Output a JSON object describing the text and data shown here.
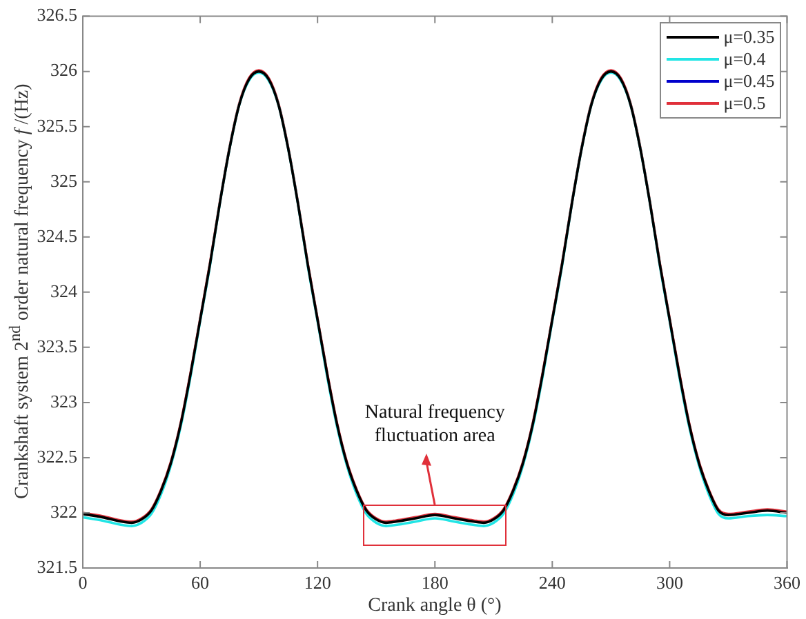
{
  "chart_data": {
    "type": "line",
    "xlabel": "Crank angle θ (°)",
    "ylabel": "Crankshaft system 2$^{nd}$ order natural frequency f /(Hz)",
    "x": [
      0,
      10,
      20,
      25,
      30,
      35,
      40,
      45,
      50,
      55,
      60,
      65,
      70,
      75,
      80,
      85,
      90,
      95,
      100,
      105,
      110,
      115,
      120,
      125,
      130,
      135,
      140,
      145,
      150,
      155,
      160,
      170,
      180,
      190,
      200,
      205,
      210,
      215,
      220,
      225,
      230,
      235,
      240,
      245,
      250,
      255,
      260,
      265,
      270,
      275,
      280,
      285,
      290,
      295,
      300,
      305,
      310,
      315,
      320,
      325,
      330,
      340,
      350,
      360
    ],
    "series": [
      {
        "name": "μ=0.35",
        "color": "#000000",
        "values": [
          321.99,
          321.96,
          321.92,
          321.91,
          321.94,
          322.02,
          322.2,
          322.45,
          322.8,
          323.25,
          323.75,
          324.25,
          324.8,
          325.3,
          325.7,
          325.93,
          326.0,
          325.93,
          325.7,
          325.3,
          324.8,
          324.25,
          323.75,
          323.25,
          322.8,
          322.45,
          322.2,
          322.02,
          321.94,
          321.91,
          321.92,
          321.95,
          321.98,
          321.95,
          321.92,
          321.91,
          321.94,
          322.02,
          322.2,
          322.45,
          322.8,
          323.25,
          323.75,
          324.25,
          324.8,
          325.3,
          325.7,
          325.93,
          326.0,
          325.93,
          325.7,
          325.3,
          324.8,
          324.25,
          323.75,
          323.25,
          322.8,
          322.45,
          322.2,
          322.02,
          321.98,
          322.0,
          322.02,
          322.0
        ]
      },
      {
        "name": "μ=0.4",
        "color": "#22e5e5",
        "values": [
          321.96,
          321.93,
          321.89,
          321.88,
          321.91,
          321.99,
          322.17,
          322.43,
          322.78,
          323.23,
          323.74,
          324.24,
          324.8,
          325.3,
          325.7,
          325.92,
          325.99,
          325.92,
          325.7,
          325.3,
          324.8,
          324.24,
          323.74,
          323.23,
          322.78,
          322.43,
          322.17,
          321.99,
          321.91,
          321.88,
          321.89,
          321.92,
          321.95,
          321.92,
          321.89,
          321.88,
          321.91,
          321.99,
          322.17,
          322.43,
          322.78,
          323.23,
          323.74,
          324.24,
          324.8,
          325.3,
          325.7,
          325.92,
          325.99,
          325.92,
          325.7,
          325.3,
          324.8,
          324.24,
          323.74,
          323.23,
          322.78,
          322.43,
          322.17,
          321.99,
          321.95,
          321.97,
          321.98,
          321.97
        ]
      },
      {
        "name": "μ=0.45",
        "color": "#0000cc",
        "values": [
          null,
          null,
          null,
          null,
          null,
          null,
          null,
          null,
          null,
          null,
          null,
          null,
          null,
          null,
          null,
          null,
          null,
          null,
          null,
          null,
          null,
          null,
          null,
          null,
          null,
          null,
          null,
          null,
          null,
          null,
          null,
          null,
          null,
          null,
          null,
          null,
          null,
          null,
          null,
          null,
          null,
          null,
          null,
          null,
          null,
          null,
          null,
          null,
          null,
          null,
          null,
          null,
          null,
          null,
          null,
          null,
          null,
          null,
          null,
          null,
          null,
          null,
          null,
          null
        ]
      },
      {
        "name": "μ=0.5",
        "color": "#e0303a",
        "values": [
          322.0,
          321.97,
          321.93,
          321.92,
          321.95,
          322.03,
          322.21,
          322.46,
          322.81,
          323.26,
          323.76,
          324.26,
          324.81,
          325.31,
          325.71,
          325.94,
          326.01,
          325.94,
          325.71,
          325.31,
          324.81,
          324.26,
          323.76,
          323.26,
          322.81,
          322.46,
          322.21,
          322.03,
          321.95,
          321.92,
          321.93,
          321.96,
          321.99,
          321.96,
          321.93,
          321.92,
          321.95,
          322.03,
          322.21,
          322.46,
          322.81,
          323.26,
          323.76,
          324.26,
          324.81,
          325.31,
          325.71,
          325.94,
          326.01,
          325.94,
          325.71,
          325.31,
          324.81,
          324.26,
          323.76,
          323.26,
          322.81,
          322.46,
          322.21,
          322.03,
          321.99,
          322.01,
          322.03,
          322.01
        ]
      }
    ],
    "xlim": [
      0,
      360
    ],
    "xticks": [
      0,
      60,
      120,
      180,
      240,
      300,
      360
    ],
    "ylim": [
      321.5,
      326.5
    ],
    "yticks": [
      321.5,
      322,
      322.5,
      323,
      323.5,
      324,
      324.5,
      325,
      325.5,
      326,
      326.5
    ],
    "annotations": [
      "Natural frequency fluctuation area"
    ],
    "legend": "top right",
    "grid": false,
    "marker": "none",
    "line_style": "solid"
  }
}
